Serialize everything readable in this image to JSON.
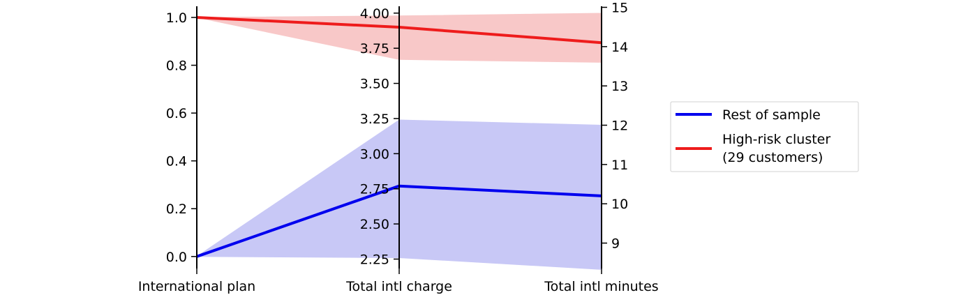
{
  "chart_data": {
    "type": "parallel_coordinates",
    "axes": [
      {
        "label": "International plan",
        "range": [
          0.0,
          1.0
        ],
        "ticks": [
          "0.0",
          "0.2",
          "0.4",
          "0.6",
          "0.8",
          "1.0"
        ],
        "tick_values": [
          0.0,
          0.2,
          0.4,
          0.6,
          0.8,
          1.0
        ]
      },
      {
        "label": "Total intl charge",
        "range": [
          2.25,
          4.0
        ],
        "ticks": [
          "2.25",
          "2.50",
          "2.75",
          "3.00",
          "3.25",
          "3.50",
          "3.75",
          "4.00"
        ],
        "tick_values": [
          2.25,
          2.5,
          2.75,
          3.0,
          3.25,
          3.5,
          3.75,
          4.0
        ]
      },
      {
        "label": "Total intl minutes",
        "range": [
          8.3,
          15.0
        ],
        "ticks": [
          "9",
          "10",
          "11",
          "12",
          "13",
          "14",
          "15"
        ],
        "tick_values": [
          9,
          10,
          11,
          12,
          13,
          14,
          15
        ]
      }
    ],
    "series": [
      {
        "name": "Rest of sample",
        "color": "#0000ee",
        "band_color": "#c8c8f6",
        "mean": [
          0.0,
          2.77,
          10.2
        ],
        "band_low": [
          0.0,
          2.26,
          8.33
        ],
        "band_high": [
          0.0,
          3.24,
          12.0
        ]
      },
      {
        "name": "High-risk cluster\n(29 customers)",
        "color": "#ee1c1c",
        "band_color": "#f8c8c8",
        "mean": [
          1.0,
          3.9,
          14.1
        ],
        "band_low": [
          1.0,
          3.67,
          13.6
        ],
        "band_high": [
          1.0,
          3.98,
          14.85
        ]
      }
    ],
    "legend": {
      "position": "right",
      "entries": [
        "Rest of sample",
        "High-risk cluster",
        "(29 customers)"
      ]
    }
  }
}
